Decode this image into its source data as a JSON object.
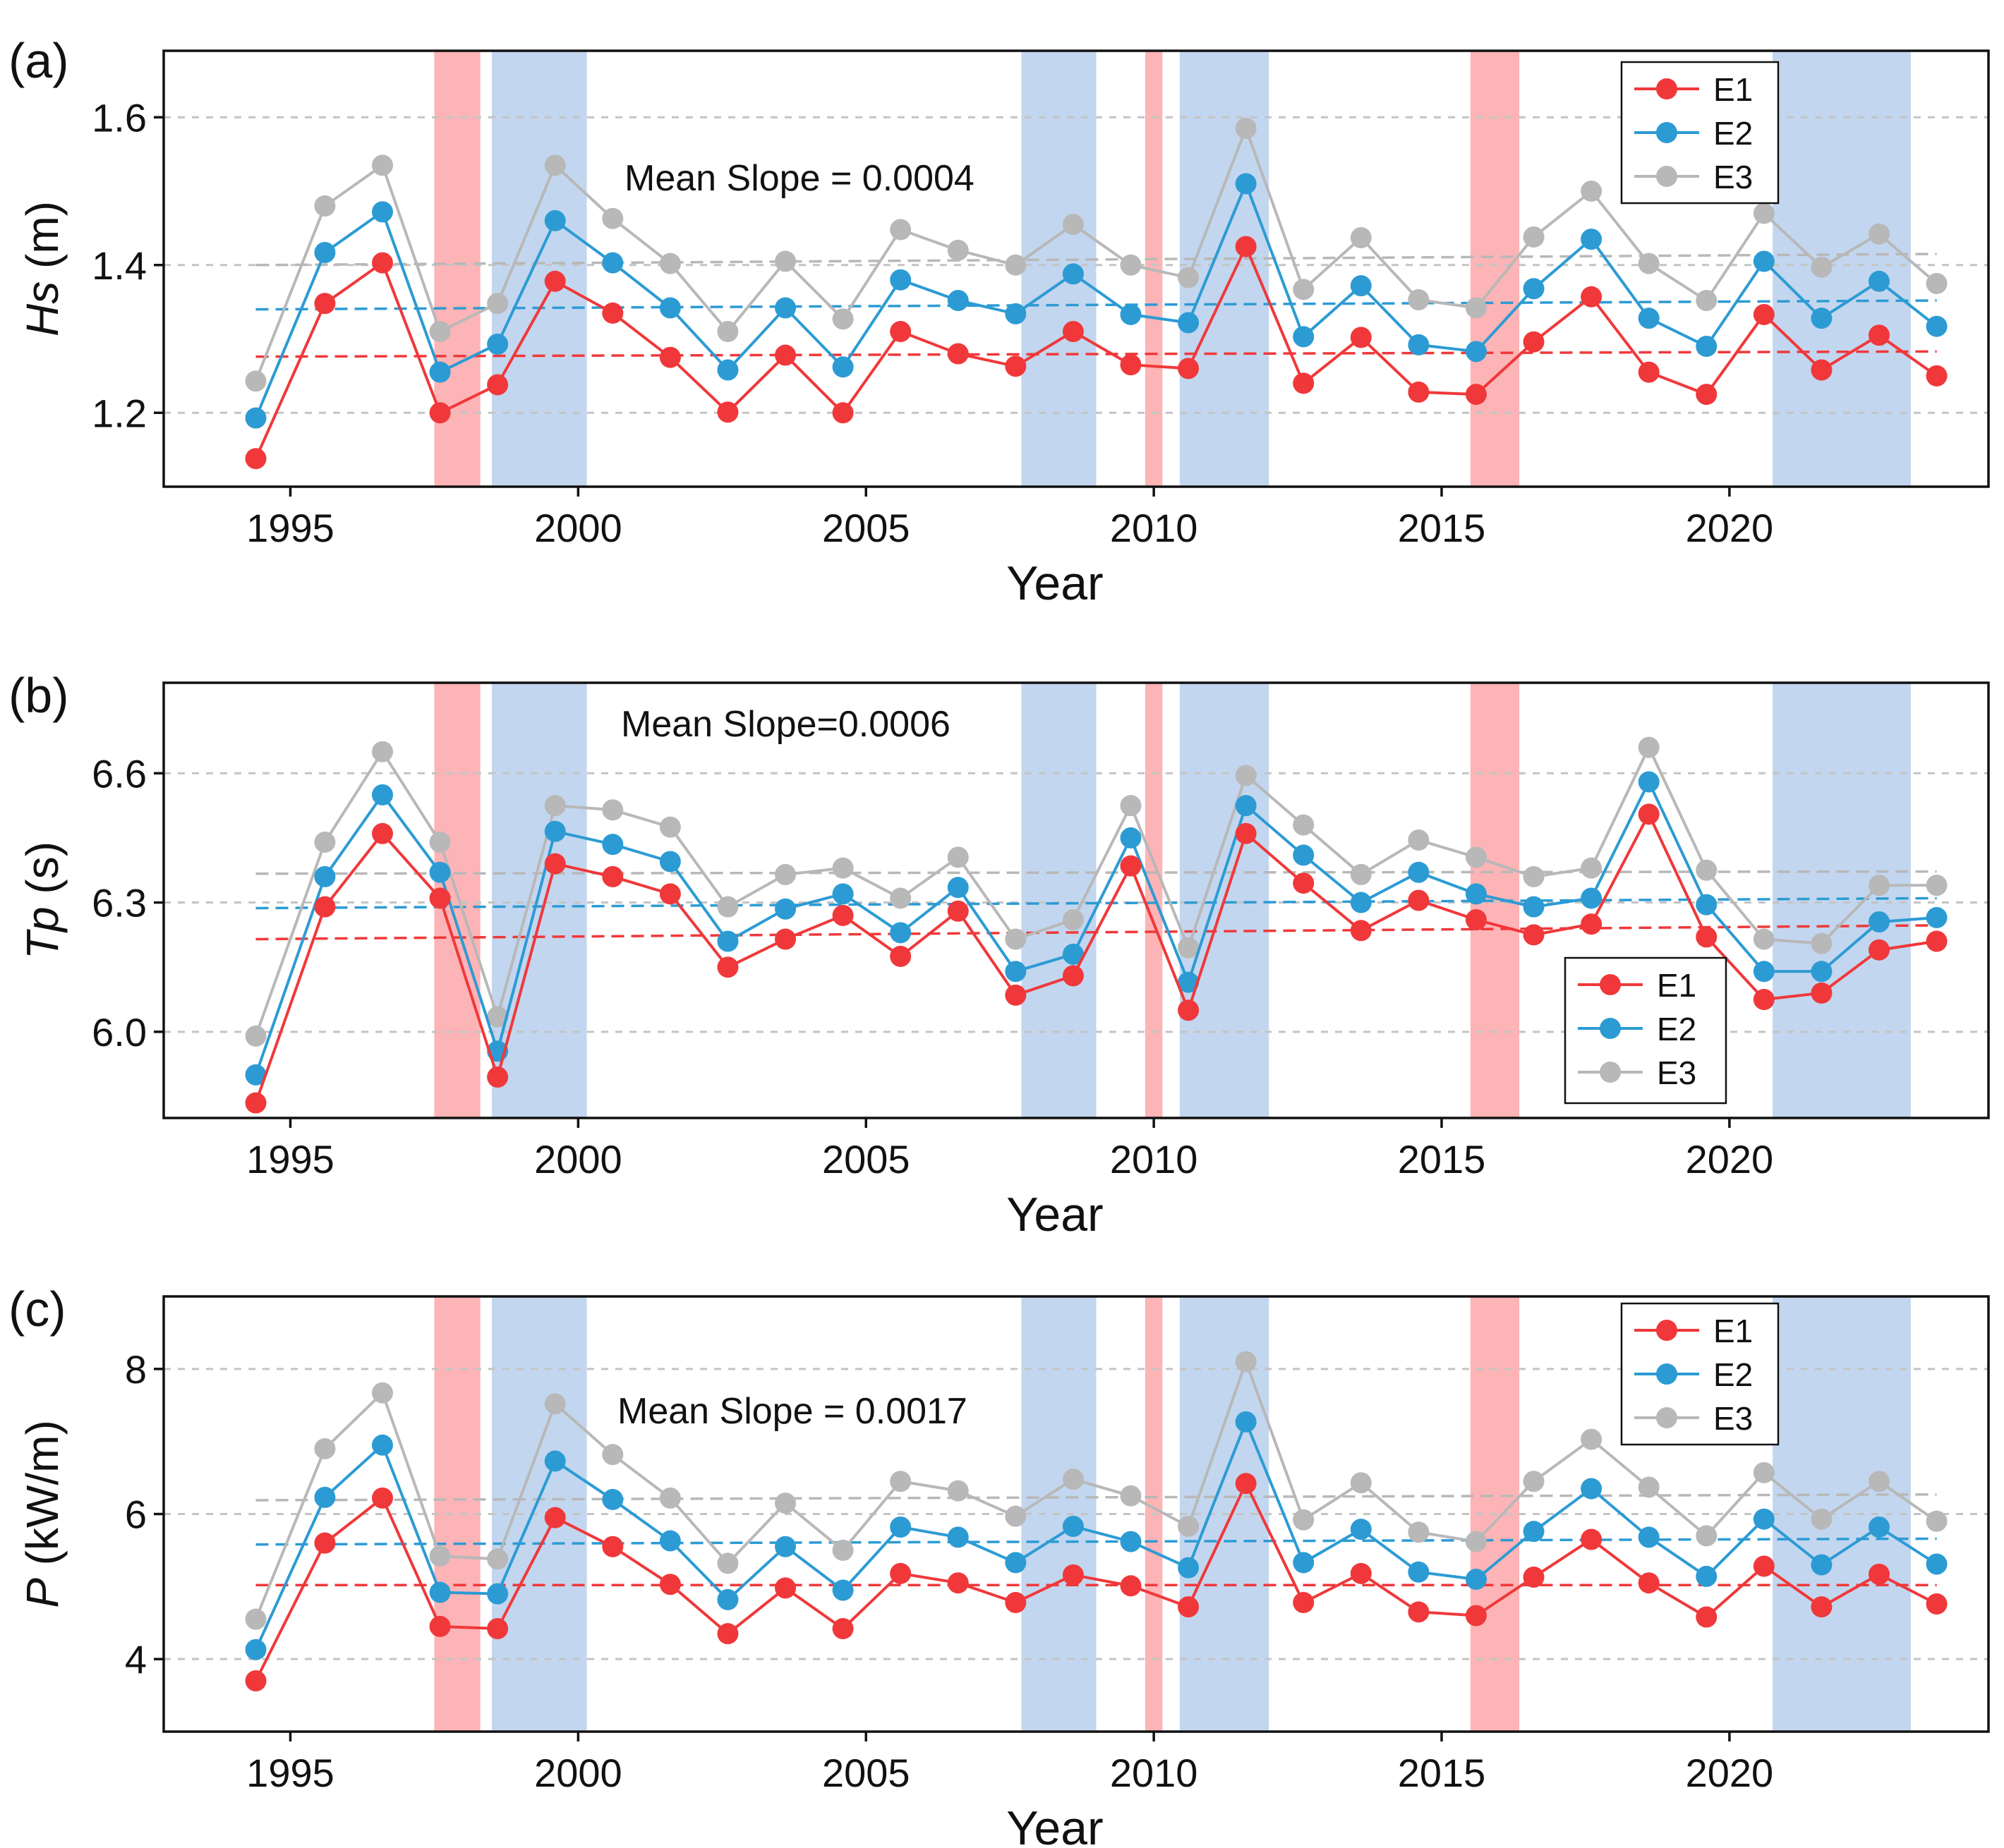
{
  "figure": {
    "colors": {
      "E1": "#f0383a",
      "E2": "#2c9bd4",
      "E3": "#b8b8b8",
      "el_nino": "#fdb4b6",
      "la_nina": "#c3d6ef",
      "grid": "#c4c4c4",
      "axis": "#111111"
    }
  },
  "chart_data": [
    {
      "type": "line",
      "panel_label": "(a)",
      "ylabel_italic": "Hs",
      "ylabel_rest": " (m)",
      "xlabel": "Year",
      "annotation": "Mean Slope = 0.0004",
      "xlim": [
        1992.8,
        2024.5
      ],
      "ylim": [
        1.1,
        1.69
      ],
      "yticks": [
        1.2,
        1.4,
        1.6
      ],
      "ytick_labels": [
        "1.2",
        "1.4",
        "1.6"
      ],
      "xticks": [
        1995,
        2000,
        2005,
        2010,
        2015,
        2020
      ],
      "xtick_labels": [
        "1995",
        "2000",
        "2005",
        "2010",
        "2015",
        "2020"
      ],
      "legend": [
        "E1",
        "E2",
        "E3"
      ],
      "legend_position": "top-right",
      "x": [
        1994.4,
        1995.6,
        1996.6,
        1997.6,
        1998.6,
        1999.6,
        2000.6,
        2001.6,
        2002.6,
        2003.6,
        2004.6,
        2005.6,
        2006.6,
        2007.6,
        2008.6,
        2009.6,
        2010.6,
        2011.6,
        2012.6,
        2013.6,
        2014.6,
        2015.6,
        2016.6,
        2017.6,
        2018.6,
        2019.6,
        2020.6,
        2021.6,
        2022.6,
        2023.6
      ],
      "series": [
        {
          "name": "E1",
          "values": [
            1.138,
            1.348,
            1.403,
            1.2,
            1.238,
            1.378,
            1.335,
            1.275,
            1.201,
            1.278,
            1.2,
            1.31,
            1.28,
            1.263,
            1.31,
            1.265,
            1.26,
            1.425,
            1.24,
            1.302,
            1.228,
            1.225,
            1.296,
            1.357,
            1.255,
            1.225,
            1.333,
            1.258,
            1.305,
            1.25
          ]
        },
        {
          "name": "E2",
          "values": [
            1.193,
            1.417,
            1.472,
            1.255,
            1.293,
            1.46,
            1.403,
            1.342,
            1.258,
            1.342,
            1.262,
            1.38,
            1.352,
            1.334,
            1.388,
            1.333,
            1.322,
            1.51,
            1.303,
            1.372,
            1.292,
            1.283,
            1.368,
            1.435,
            1.328,
            1.29,
            1.405,
            1.328,
            1.378,
            1.317
          ]
        },
        {
          "name": "E3",
          "values": [
            1.243,
            1.48,
            1.535,
            1.31,
            1.348,
            1.535,
            1.463,
            1.402,
            1.31,
            1.405,
            1.327,
            1.448,
            1.42,
            1.4,
            1.455,
            1.4,
            1.383,
            1.585,
            1.367,
            1.437,
            1.353,
            1.342,
            1.438,
            1.5,
            1.402,
            1.352,
            1.47,
            1.397,
            1.442,
            1.375
          ]
        }
      ],
      "trend_lines": [
        {
          "name": "E1",
          "values": [
            1.276,
            1.283
          ]
        },
        {
          "name": "E2",
          "values": [
            1.34,
            1.352
          ]
        },
        {
          "name": "E3",
          "values": [
            1.4,
            1.415
          ]
        }
      ],
      "shaded_periods": [
        {
          "kind": "el_nino",
          "x0": 1997.5,
          "x1": 1998.3
        },
        {
          "kind": "la_nina",
          "x0": 1998.5,
          "x1": 2000.15
        },
        {
          "kind": "la_nina",
          "x0": 2007.7,
          "x1": 2009.0
        },
        {
          "kind": "el_nino",
          "x0": 2009.85,
          "x1": 2010.15
        },
        {
          "kind": "la_nina",
          "x0": 2010.45,
          "x1": 2012.0
        },
        {
          "kind": "el_nino",
          "x0": 2015.5,
          "x1": 2016.35
        },
        {
          "kind": "la_nina",
          "x0": 2020.75,
          "x1": 2023.15
        }
      ]
    },
    {
      "type": "line",
      "panel_label": "(b)",
      "ylabel_italic": "Tp",
      "ylabel_rest": " (s)",
      "xlabel": "Year",
      "annotation": "Mean Slope=0.0006",
      "xlim": [
        1992.8,
        2024.5
      ],
      "ylim": [
        5.8,
        6.81
      ],
      "yticks": [
        6.0,
        6.3,
        6.6
      ],
      "ytick_labels": [
        "6.0",
        "6.3",
        "6.6"
      ],
      "xticks": [
        1995,
        2000,
        2005,
        2010,
        2015,
        2020
      ],
      "xtick_labels": [
        "1995",
        "2000",
        "2005",
        "2010",
        "2015",
        "2020"
      ],
      "legend": [
        "E1",
        "E2",
        "E3"
      ],
      "legend_position": "bottom-right",
      "x": [
        1994.4,
        1995.6,
        1996.6,
        1997.6,
        1998.6,
        1999.6,
        2000.6,
        2001.6,
        2002.6,
        2003.6,
        2004.6,
        2005.6,
        2006.6,
        2007.6,
        2008.6,
        2009.6,
        2010.6,
        2011.6,
        2012.6,
        2013.6,
        2014.6,
        2015.6,
        2016.6,
        2017.6,
        2018.6,
        2019.6,
        2020.6,
        2021.6,
        2022.6,
        2023.6
      ],
      "series": [
        {
          "name": "E1",
          "values": [
            5.835,
            6.29,
            6.46,
            6.31,
            5.895,
            6.39,
            6.36,
            6.32,
            6.15,
            6.215,
            6.27,
            6.175,
            6.28,
            6.085,
            6.13,
            6.385,
            6.05,
            6.46,
            6.345,
            6.235,
            6.305,
            6.26,
            6.225,
            6.25,
            6.505,
            6.22,
            6.075,
            6.09,
            6.19,
            6.21
          ]
        },
        {
          "name": "E2",
          "values": [
            5.9,
            6.36,
            6.55,
            6.37,
            5.955,
            6.465,
            6.435,
            6.395,
            6.21,
            6.285,
            6.32,
            6.23,
            6.335,
            6.14,
            6.18,
            6.45,
            6.115,
            6.525,
            6.41,
            6.3,
            6.37,
            6.32,
            6.29,
            6.31,
            6.58,
            6.295,
            6.14,
            6.14,
            6.255,
            6.265
          ]
        },
        {
          "name": "E3",
          "values": [
            5.99,
            6.44,
            6.65,
            6.44,
            6.035,
            6.525,
            6.515,
            6.475,
            6.29,
            6.365,
            6.38,
            6.31,
            6.405,
            6.215,
            6.26,
            6.525,
            6.195,
            6.595,
            6.48,
            6.365,
            6.445,
            6.405,
            6.36,
            6.38,
            6.66,
            6.375,
            6.215,
            6.205,
            6.34,
            6.34
          ]
        }
      ],
      "trend_lines": [
        {
          "name": "E1",
          "values": [
            6.215,
            6.247
          ]
        },
        {
          "name": "E2",
          "values": [
            6.287,
            6.31
          ]
        },
        {
          "name": "E3",
          "values": [
            6.367,
            6.372
          ]
        }
      ],
      "shaded_periods": [
        {
          "kind": "el_nino",
          "x0": 1997.5,
          "x1": 1998.3
        },
        {
          "kind": "la_nina",
          "x0": 1998.5,
          "x1": 2000.15
        },
        {
          "kind": "la_nina",
          "x0": 2007.7,
          "x1": 2009.0
        },
        {
          "kind": "el_nino",
          "x0": 2009.85,
          "x1": 2010.15
        },
        {
          "kind": "la_nina",
          "x0": 2010.45,
          "x1": 2012.0
        },
        {
          "kind": "el_nino",
          "x0": 2015.5,
          "x1": 2016.35
        },
        {
          "kind": "la_nina",
          "x0": 2020.75,
          "x1": 2023.15
        }
      ]
    },
    {
      "type": "line",
      "panel_label": "(c)",
      "ylabel_italic": "P",
      "ylabel_rest": " (kW/m)",
      "xlabel": "Year",
      "annotation": "Mean Slope = 0.0017",
      "xlim": [
        1992.8,
        2024.5
      ],
      "ylim": [
        3.0,
        9.0
      ],
      "yticks": [
        4,
        6,
        8
      ],
      "ytick_labels": [
        "4",
        "6",
        "8"
      ],
      "xticks": [
        1995,
        2000,
        2005,
        2010,
        2015,
        2020
      ],
      "xtick_labels": [
        "1995",
        "2000",
        "2005",
        "2010",
        "2015",
        "2020"
      ],
      "legend": [
        "E1",
        "E2",
        "E3"
      ],
      "legend_position": "top-right",
      "x": [
        1994.4,
        1995.6,
        1996.6,
        1997.6,
        1998.6,
        1999.6,
        2000.6,
        2001.6,
        2002.6,
        2003.6,
        2004.6,
        2005.6,
        2006.6,
        2007.6,
        2008.6,
        2009.6,
        2010.6,
        2011.6,
        2012.6,
        2013.6,
        2014.6,
        2015.6,
        2016.6,
        2017.6,
        2018.6,
        2019.6,
        2020.6,
        2021.6,
        2022.6,
        2023.6
      ],
      "series": [
        {
          "name": "E1",
          "values": [
            3.7,
            5.6,
            6.22,
            4.45,
            4.42,
            5.95,
            5.55,
            5.03,
            4.35,
            4.98,
            4.42,
            5.18,
            5.05,
            4.78,
            5.16,
            5.01,
            4.72,
            6.42,
            4.78,
            5.18,
            4.65,
            4.6,
            5.13,
            5.65,
            5.05,
            4.58,
            5.28,
            4.72,
            5.17,
            4.76
          ]
        },
        {
          "name": "E2",
          "values": [
            4.13,
            6.23,
            6.95,
            4.92,
            4.9,
            6.73,
            6.2,
            5.63,
            4.82,
            5.55,
            4.95,
            5.82,
            5.68,
            5.33,
            5.83,
            5.62,
            5.26,
            7.27,
            5.33,
            5.79,
            5.2,
            5.1,
            5.76,
            6.35,
            5.68,
            5.14,
            5.93,
            5.3,
            5.82,
            5.31
          ]
        },
        {
          "name": "E3",
          "values": [
            4.55,
            6.9,
            7.67,
            5.42,
            5.38,
            7.52,
            6.82,
            6.22,
            5.32,
            6.15,
            5.5,
            6.45,
            6.32,
            5.97,
            6.48,
            6.25,
            5.83,
            8.1,
            5.92,
            6.43,
            5.75,
            5.62,
            6.45,
            7.03,
            6.37,
            5.7,
            6.57,
            5.93,
            6.45,
            5.9
          ]
        }
      ],
      "trend_lines": [
        {
          "name": "E1",
          "values": [
            5.02,
            5.02
          ]
        },
        {
          "name": "E2",
          "values": [
            5.58,
            5.66
          ]
        },
        {
          "name": "E3",
          "values": [
            6.19,
            6.27
          ]
        }
      ],
      "shaded_periods": [
        {
          "kind": "el_nino",
          "x0": 1997.5,
          "x1": 1998.3
        },
        {
          "kind": "la_nina",
          "x0": 1998.5,
          "x1": 2000.15
        },
        {
          "kind": "la_nina",
          "x0": 2007.7,
          "x1": 2009.0
        },
        {
          "kind": "el_nino",
          "x0": 2009.85,
          "x1": 2010.15
        },
        {
          "kind": "la_nina",
          "x0": 2010.45,
          "x1": 2012.0
        },
        {
          "kind": "el_nino",
          "x0": 2015.5,
          "x1": 2016.35
        },
        {
          "kind": "la_nina",
          "x0": 2020.75,
          "x1": 2023.15
        }
      ]
    }
  ]
}
